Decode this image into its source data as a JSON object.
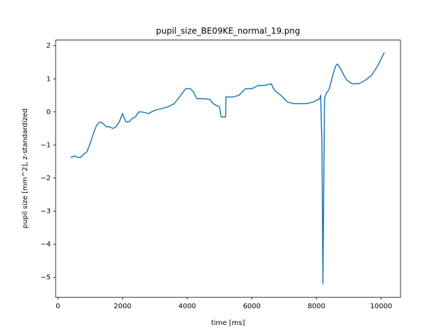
{
  "chart_data": {
    "type": "line",
    "title": "pupil_size_BE09KE_normal_19.png",
    "xlabel": "time [ms]",
    "ylabel": "pupil size [mm^2], z-standardized",
    "x": [
      400,
      500,
      600,
      700,
      800,
      900,
      1000,
      1100,
      1200,
      1300,
      1400,
      1500,
      1600,
      1700,
      1800,
      1900,
      2000,
      2100,
      2200,
      2300,
      2400,
      2500,
      2600,
      2800,
      3000,
      3200,
      3400,
      3600,
      3800,
      3950,
      4100,
      4200,
      4300,
      4500,
      4700,
      4800,
      5000,
      5050,
      5190,
      5200,
      5400,
      5600,
      5800,
      6000,
      6200,
      6400,
      6600,
      6700,
      6900,
      7100,
      7300,
      7500,
      7700,
      7900,
      8100,
      8130,
      8170,
      8200,
      8250,
      8300,
      8400,
      8500,
      8600,
      8650,
      8750,
      8850,
      8950,
      9100,
      9300,
      9500,
      9700,
      9900,
      10050,
      10100
    ],
    "series": [
      {
        "name": "pupil size",
        "color": "#1f77b4",
        "values": [
          -1.38,
          -1.33,
          -1.37,
          -1.38,
          -1.28,
          -1.2,
          -0.95,
          -0.65,
          -0.4,
          -0.3,
          -0.35,
          -0.45,
          -0.45,
          -0.5,
          -0.45,
          -0.3,
          -0.05,
          -0.3,
          -0.3,
          -0.2,
          -0.15,
          0.0,
          0.0,
          -0.05,
          0.05,
          0.1,
          0.15,
          0.25,
          0.5,
          0.7,
          0.7,
          0.6,
          0.4,
          0.4,
          0.38,
          0.25,
          0.15,
          -0.15,
          -0.15,
          0.45,
          0.45,
          0.5,
          0.7,
          0.7,
          0.8,
          0.8,
          0.85,
          0.65,
          0.5,
          0.3,
          0.25,
          0.25,
          0.25,
          0.3,
          0.4,
          0.5,
          -1.0,
          -5.2,
          0.4,
          0.55,
          0.7,
          1.1,
          1.4,
          1.45,
          1.3,
          1.1,
          0.95,
          0.85,
          0.85,
          0.95,
          1.1,
          1.4,
          1.7,
          1.8
        ]
      }
    ],
    "xlim": [
      -70,
      10600
    ],
    "ylim": [
      -5.6,
      2.17
    ],
    "xticks": [
      0,
      2000,
      4000,
      6000,
      8000,
      10000
    ],
    "yticks": [
      {
        "value": -5,
        "label": "−5"
      },
      {
        "value": -4,
        "label": "−4"
      },
      {
        "value": -3,
        "label": "−3"
      },
      {
        "value": -2,
        "label": "−2"
      },
      {
        "value": -1,
        "label": "−1"
      },
      0,
      1,
      2
    ]
  }
}
